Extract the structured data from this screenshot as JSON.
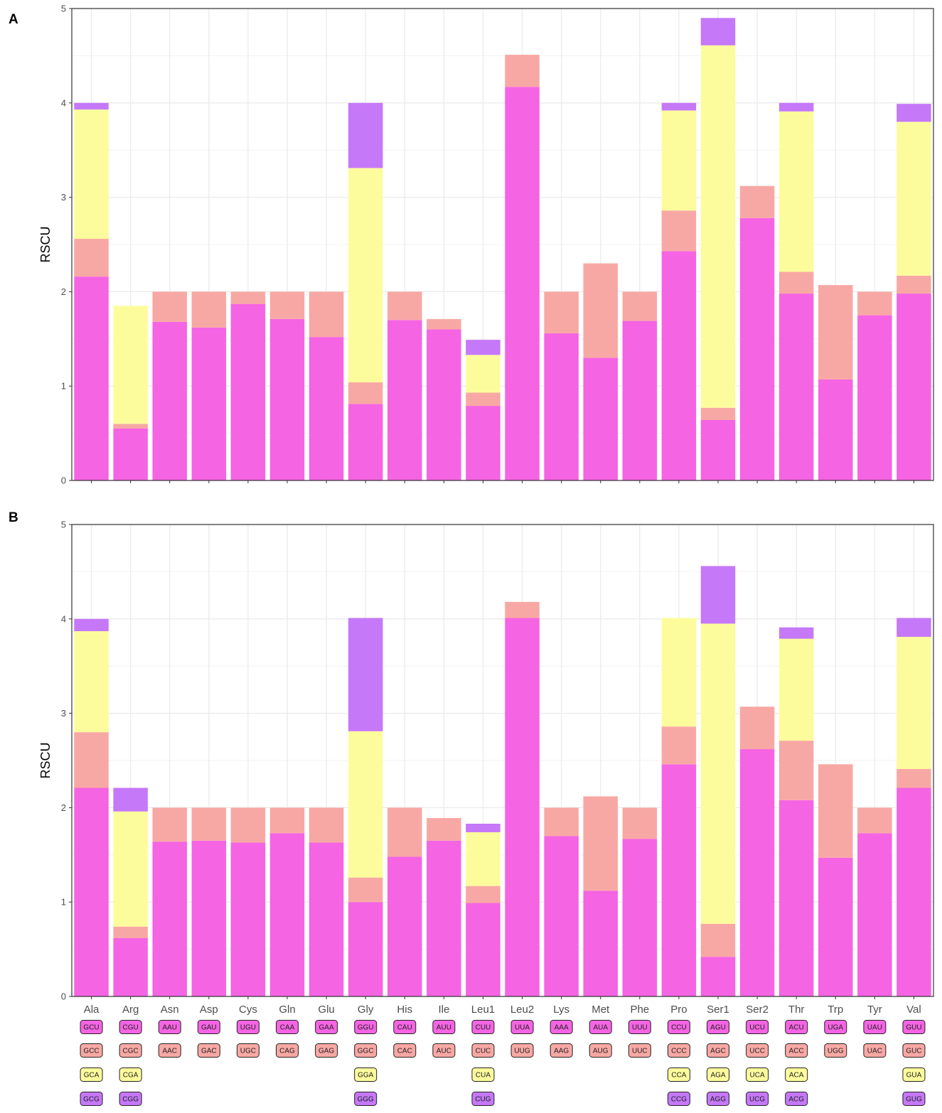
{
  "chart_data": [
    {
      "type": "bar",
      "stacked": true,
      "panel_label": "A",
      "ylabel": "RSCU",
      "xlabel": "",
      "ylim": [
        0,
        5
      ],
      "y_ticks": [
        "0",
        "1",
        "2",
        "3",
        "4",
        "5"
      ],
      "grid": true,
      "categories": [
        "Ala",
        "Arg",
        "Asn",
        "Asp",
        "Cys",
        "Gln",
        "Glu",
        "Gly",
        "His",
        "Ile",
        "Leu1",
        "Leu2",
        "Lys",
        "Met",
        "Phe",
        "Pro",
        "Ser1",
        "Ser2",
        "Thr",
        "Trp",
        "Tyr",
        "Val"
      ],
      "show_category_labels": false,
      "series": [
        {
          "name": "codon 1",
          "values": [
            2.16,
            0.55,
            1.68,
            1.62,
            1.87,
            1.71,
            1.52,
            0.81,
            1.7,
            1.6,
            0.79,
            4.17,
            1.56,
            1.3,
            1.69,
            2.43,
            0.64,
            2.78,
            1.98,
            1.07,
            1.75,
            1.98
          ]
        },
        {
          "name": "codon 2",
          "values": [
            0.4,
            0.05,
            0.32,
            0.38,
            0.13,
            0.29,
            0.48,
            0.23,
            0.3,
            0.11,
            0.14,
            0.34,
            0.44,
            1.0,
            0.31,
            0.43,
            0.13,
            0.34,
            0.23,
            1.0,
            0.25,
            0.19
          ]
        },
        {
          "name": "codon 3",
          "values": [
            1.37,
            1.25,
            0,
            0,
            0,
            0,
            0,
            2.27,
            0,
            0,
            0.4,
            0,
            0,
            0,
            0,
            1.06,
            3.84,
            0,
            1.7,
            0,
            0,
            1.63
          ]
        },
        {
          "name": "codon 4",
          "values": [
            0.07,
            0,
            0,
            0,
            0,
            0,
            0,
            0.69,
            0,
            0,
            0.16,
            0,
            0,
            0,
            0,
            0.08,
            0.29,
            0,
            0.09,
            0,
            0,
            0.19
          ]
        }
      ]
    },
    {
      "type": "bar",
      "stacked": true,
      "panel_label": "B",
      "ylabel": "RSCU",
      "xlabel": "",
      "ylim": [
        0,
        5
      ],
      "y_ticks": [
        "0",
        "1",
        "2",
        "3",
        "4",
        "5"
      ],
      "grid": true,
      "categories": [
        "Ala",
        "Arg",
        "Asn",
        "Asp",
        "Cys",
        "Gln",
        "Glu",
        "Gly",
        "His",
        "Ile",
        "Leu1",
        "Leu2",
        "Lys",
        "Met",
        "Phe",
        "Pro",
        "Ser1",
        "Ser2",
        "Thr",
        "Trp",
        "Tyr",
        "Val"
      ],
      "show_category_labels": true,
      "series": [
        {
          "name": "codon 1",
          "values": [
            2.21,
            0.62,
            1.64,
            1.65,
            1.63,
            1.73,
            1.63,
            1.0,
            1.48,
            1.65,
            0.99,
            4.01,
            1.7,
            1.12,
            1.67,
            2.46,
            0.42,
            2.62,
            2.08,
            1.47,
            1.73,
            2.21
          ]
        },
        {
          "name": "codon 2",
          "values": [
            0.59,
            0.12,
            0.36,
            0.35,
            0.37,
            0.27,
            0.37,
            0.26,
            0.52,
            0.24,
            0.18,
            0.17,
            0.3,
            1.0,
            0.33,
            0.4,
            0.35,
            0.45,
            0.63,
            0.99,
            0.27,
            0.2
          ]
        },
        {
          "name": "codon 3",
          "values": [
            1.07,
            1.22,
            0,
            0,
            0,
            0,
            0,
            1.55,
            0,
            0,
            0.57,
            0,
            0,
            0,
            0,
            1.15,
            3.18,
            0,
            1.08,
            0,
            0,
            1.4
          ]
        },
        {
          "name": "codon 4",
          "values": [
            0.13,
            0.25,
            0,
            0,
            0,
            0,
            0,
            1.2,
            0,
            0,
            0.09,
            0,
            0,
            0,
            0,
            0,
            0.61,
            0,
            0.12,
            0,
            0,
            0.2
          ]
        }
      ]
    }
  ],
  "colors": [
    "#f564e3",
    "#f8a8a4",
    "#fdfc9c",
    "#c578f8"
  ],
  "codon_table": [
    [
      "GCU",
      "GCC",
      "GCA",
      "GCG"
    ],
    [
      "CGU",
      "CGC",
      "CGA",
      "CGG"
    ],
    [
      "AAU",
      "AAC"
    ],
    [
      "GAU",
      "GAC"
    ],
    [
      "UGU",
      "UGC"
    ],
    [
      "CAA",
      "CAG"
    ],
    [
      "GAA",
      "GAG"
    ],
    [
      "GGU",
      "GGC",
      "GGA",
      "GGG"
    ],
    [
      "CAU",
      "CAC"
    ],
    [
      "AUU",
      "AUC"
    ],
    [
      "CUU",
      "CUC",
      "CUA",
      "CUG"
    ],
    [
      "UUA",
      "UUG"
    ],
    [
      "AAA",
      "AAG"
    ],
    [
      "AUA",
      "AUG"
    ],
    [
      "UUU",
      "UUC"
    ],
    [
      "CCU",
      "CCC",
      "CCA",
      "CCG"
    ],
    [
      "AGU",
      "AGC",
      "AGA",
      "AGG"
    ],
    [
      "UCU",
      "UCC",
      "UCA",
      "UCG"
    ],
    [
      "ACU",
      "ACC",
      "ACA",
      "ACG"
    ],
    [
      "UGA",
      "UGG"
    ],
    [
      "UAU",
      "UAC"
    ],
    [
      "GUU",
      "GUC",
      "GUA",
      "GUG"
    ]
  ]
}
